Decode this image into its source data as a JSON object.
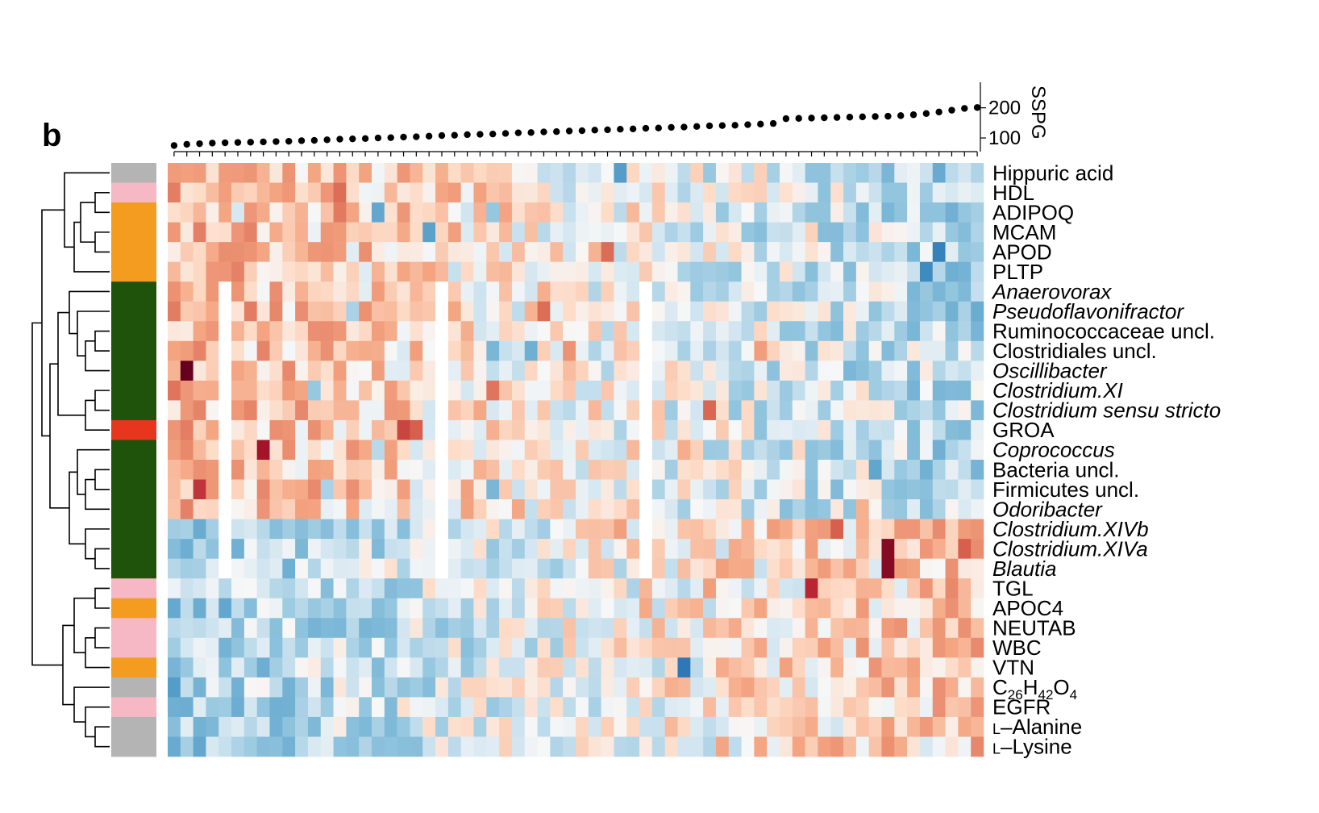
{
  "panel_label": "b",
  "chart_data": {
    "type": "heatmap",
    "title": "",
    "n_columns": 64,
    "column_track": {
      "axis_label": "SSPG",
      "ticks": [
        100,
        200
      ],
      "tick_labels": [
        "100",
        "200"
      ],
      "ylim": [
        60,
        290
      ],
      "values": [
        75,
        79,
        81,
        83,
        84,
        85,
        86,
        87,
        88,
        89,
        91,
        92,
        94,
        96,
        97,
        98,
        100,
        101,
        103,
        104,
        106,
        108,
        109,
        111,
        112,
        113,
        115,
        117,
        118,
        120,
        121,
        123,
        124,
        126,
        127,
        129,
        130,
        132,
        133,
        135,
        136,
        138,
        140,
        141,
        142,
        144,
        146,
        148,
        164,
        165,
        166,
        167,
        168,
        169,
        170,
        171,
        172,
        174,
        177,
        181,
        186,
        192,
        198,
        201
      ]
    },
    "row_groups": {
      "colors": {
        "metabolite": "#b4b4b4",
        "clinical": "#f6b8c4",
        "protein": "#f39c1f",
        "microbe": "#1f520a",
        "cytokine": "#e8351e"
      }
    },
    "rows": [
      {
        "label": "Hippuric acid",
        "group": "metabolite",
        "italic": false
      },
      {
        "label": "HDL",
        "group": "clinical",
        "italic": false
      },
      {
        "label": "ADIPOQ",
        "group": "protein",
        "italic": false
      },
      {
        "label": "MCAM",
        "group": "protein",
        "italic": false
      },
      {
        "label": "APOD",
        "group": "protein",
        "italic": false
      },
      {
        "label": "PLTP",
        "group": "protein",
        "italic": false
      },
      {
        "label": "Anaerovorax",
        "group": "microbe",
        "italic": true
      },
      {
        "label": "Pseudoflavonifractor",
        "group": "microbe",
        "italic": true
      },
      {
        "label": "Ruminococcaceae uncl.",
        "group": "microbe",
        "italic": false
      },
      {
        "label": "Clostridiales uncl.",
        "group": "microbe",
        "italic": false
      },
      {
        "label": "Oscillibacter",
        "group": "microbe",
        "italic": true
      },
      {
        "label": "Clostridium.XI",
        "group": "microbe",
        "italic": true
      },
      {
        "label": "Clostridium sensu stricto",
        "group": "microbe",
        "italic": true
      },
      {
        "label": "GROA",
        "group": "cytokine",
        "italic": false
      },
      {
        "label": "Coprococcus",
        "group": "microbe",
        "italic": true
      },
      {
        "label": "Bacteria uncl.",
        "group": "microbe",
        "italic": false
      },
      {
        "label": "Firmicutes uncl.",
        "group": "microbe",
        "italic": false
      },
      {
        "label": "Odoribacter",
        "group": "microbe",
        "italic": true
      },
      {
        "label": "Clostridium.XIVb",
        "group": "microbe",
        "italic": true
      },
      {
        "label": "Clostridium.XIVa",
        "group": "microbe",
        "italic": true
      },
      {
        "label": "Blautia",
        "group": "microbe",
        "italic": true
      },
      {
        "label": "TGL",
        "group": "clinical",
        "italic": false
      },
      {
        "label": "APOC4",
        "group": "protein",
        "italic": false
      },
      {
        "label": "NEUTAB",
        "group": "clinical",
        "italic": false
      },
      {
        "label": "WBC",
        "group": "clinical",
        "italic": false
      },
      {
        "label": "VTN",
        "group": "protein",
        "italic": false
      },
      {
        "label": "C26H42O4",
        "group": "metabolite",
        "italic": false,
        "rich": [
          [
            "C",
            ""
          ],
          [
            "26",
            "sub"
          ],
          [
            "H",
            ""
          ],
          [
            "42",
            "sub"
          ],
          [
            "O",
            ""
          ],
          [
            "4",
            "sub"
          ]
        ]
      },
      {
        "label": "EGFR",
        "group": "clinical",
        "italic": false
      },
      {
        "label": "l-Alanine",
        "group": "metabolite",
        "italic": false,
        "rich": [
          [
            "L",
            "sc"
          ],
          [
            "–Alanine",
            ""
          ]
        ]
      },
      {
        "label": "l-Lysine",
        "group": "metabolite",
        "italic": false,
        "rich": [
          [
            "L",
            "sc"
          ],
          [
            "–Lysine",
            ""
          ]
        ]
      }
    ],
    "color_scale": {
      "low": "#2166ac",
      "mid": "#f7f7f7",
      "high": "#67001f",
      "range": [
        -3,
        3
      ]
    },
    "pattern": {
      "top_rows_trend": [
        0,
        1,
        2,
        3,
        4,
        5
      ],
      "microbe_rows_trend": [
        6,
        7,
        8,
        9,
        10,
        11,
        12,
        13,
        14,
        15,
        16,
        17
      ],
      "late_rows_trend": [
        18,
        19,
        20,
        21,
        22,
        23,
        24,
        25,
        26,
        27,
        28,
        29
      ],
      "blank_columns": [
        4,
        21,
        37
      ],
      "highlights": [
        {
          "row": 10,
          "col": 1,
          "value": 3.0
        },
        {
          "row": 14,
          "col": 7,
          "value": 2.6
        },
        {
          "row": 16,
          "col": 2,
          "value": 2.3
        },
        {
          "row": 19,
          "col": 56,
          "value": 2.8
        },
        {
          "row": 20,
          "col": 56,
          "value": 2.8
        },
        {
          "row": 21,
          "col": 50,
          "value": 2.4
        },
        {
          "row": 25,
          "col": 40,
          "value": -2.6
        },
        {
          "row": 4,
          "col": 60,
          "value": -2.4
        },
        {
          "row": 0,
          "col": 35,
          "value": -1.8
        },
        {
          "row": 22,
          "col": 4,
          "value": -1.6
        },
        {
          "row": 26,
          "col": 0,
          "value": -1.8
        },
        {
          "row": 29,
          "col": 2,
          "value": -1.6
        },
        {
          "row": 2,
          "col": 16,
          "value": -1.6
        },
        {
          "row": 3,
          "col": 20,
          "value": -1.7
        },
        {
          "row": 12,
          "col": 42,
          "value": 1.9
        },
        {
          "row": 13,
          "col": 19,
          "value": 2.0
        },
        {
          "row": 18,
          "col": 52,
          "value": 2.0
        },
        {
          "row": 1,
          "col": 13,
          "value": 1.8
        },
        {
          "row": 11,
          "col": 25,
          "value": 1.7
        },
        {
          "row": 7,
          "col": 29,
          "value": 1.8
        }
      ]
    }
  }
}
